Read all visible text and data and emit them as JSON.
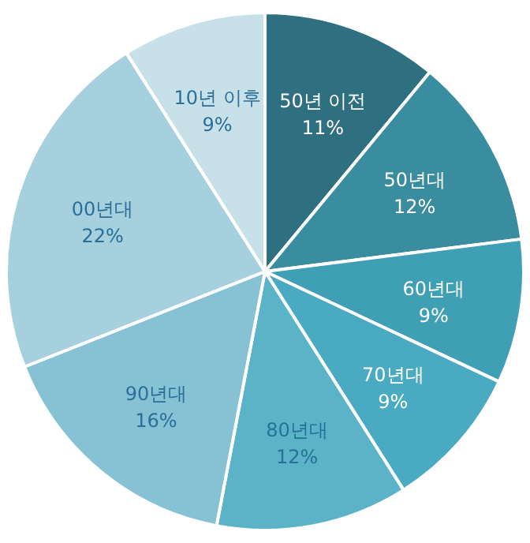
{
  "chart_data": {
    "type": "pie",
    "categories": [
      "50년 이전",
      "50년대",
      "60년대",
      "70년대",
      "80년대",
      "90년대",
      "00년대",
      "10년 이후"
    ],
    "values": [
      11,
      12,
      9,
      9,
      12,
      16,
      22,
      9
    ],
    "colors": [
      "#2e7080",
      "#3a8c9f",
      "#3f9fb4",
      "#4aaac1",
      "#5bb3c8",
      "#86c2d3",
      "#a6d0dd",
      "#c8e1e9"
    ],
    "value_labels": [
      "11%",
      "12%",
      "9%",
      "9%",
      "12%",
      "16%",
      "22%",
      "9%"
    ]
  }
}
